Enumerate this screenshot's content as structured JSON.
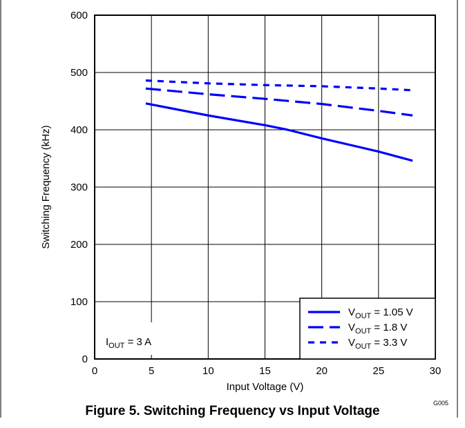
{
  "chart_data": {
    "type": "line",
    "title": "",
    "xlabel": "Input Voltage (V)",
    "ylabel": "Switching Frequency (kHz)",
    "xlim": [
      0,
      30
    ],
    "ylim": [
      0,
      600
    ],
    "xticks": [
      "0",
      "5",
      "10",
      "15",
      "20",
      "25",
      "30"
    ],
    "yticks": [
      "0",
      "100",
      "200",
      "300",
      "400",
      "500",
      "600"
    ],
    "grid": true,
    "legend_position": "bottom-right",
    "series": [
      {
        "name_main": "V",
        "name_sub": "OUT",
        "name_value": "= 1.05 V",
        "style": "solid",
        "color": "#0000ff",
        "x": [
          4.5,
          10,
          15,
          17,
          20,
          25,
          28
        ],
        "y": [
          446,
          425,
          408,
          400,
          385,
          362,
          346
        ]
      },
      {
        "name_main": "V",
        "name_sub": "OUT",
        "name_value": "= 1.8 V",
        "style": "long-dash",
        "color": "#0000ff",
        "x": [
          4.5,
          10,
          15,
          20,
          25,
          28
        ],
        "y": [
          472,
          462,
          454,
          445,
          433,
          425
        ]
      },
      {
        "name_main": "V",
        "name_sub": "OUT",
        "name_value": "= 3.3 V",
        "style": "short-dash",
        "color": "#0000ff",
        "x": [
          4.5,
          10,
          15,
          20,
          25,
          28
        ],
        "y": [
          486,
          481,
          478,
          476,
          472,
          469
        ]
      }
    ],
    "annotation": {
      "main": "I",
      "sub": "OUT",
      "value": "= 3 A"
    }
  },
  "caption": "Figure 5. Switching Frequency vs Input Voltage",
  "figure_code": "G005"
}
